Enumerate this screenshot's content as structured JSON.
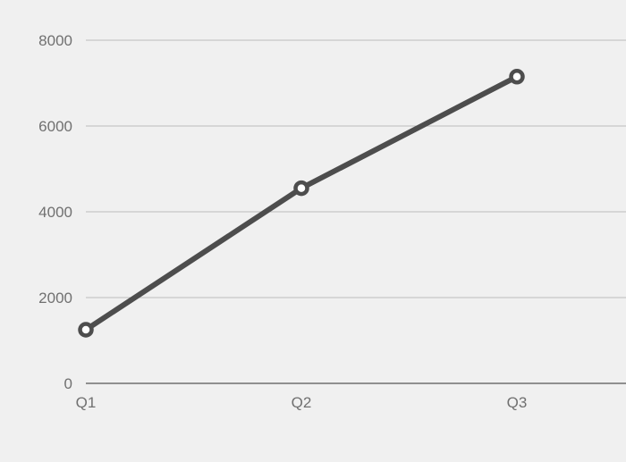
{
  "colors": {
    "background": "#f0f0f0",
    "line": "#4d4d4d",
    "marker_fill": "#ffffff",
    "grid": "#bdbdbd",
    "axis": "#555555",
    "tick_text": "#707070"
  },
  "chart_data": {
    "type": "line",
    "title": "",
    "xlabel": "",
    "ylabel": "",
    "categories": [
      "Q1",
      "Q2",
      "Q3"
    ],
    "series": [
      {
        "values": [
          1250,
          4550,
          7150
        ]
      }
    ],
    "ylim": [
      0,
      8000
    ],
    "yticks": [
      "0",
      "2000",
      "4000",
      "6000",
      "8000"
    ],
    "grid": true,
    "legend": "none"
  }
}
